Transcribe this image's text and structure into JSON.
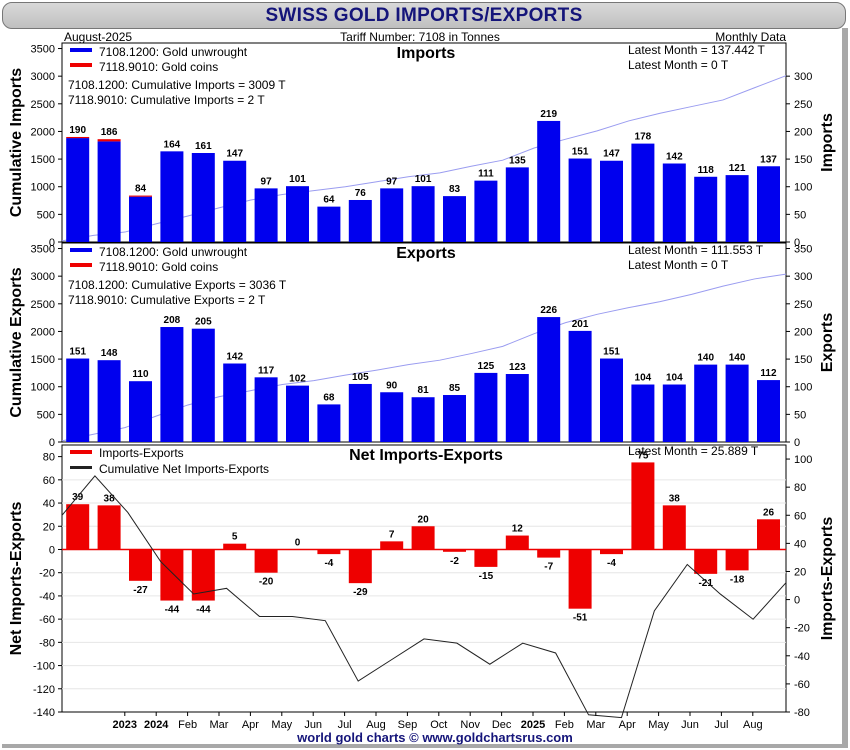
{
  "title": "SWISS GOLD IMPORTS/EXPORTS",
  "header": {
    "left": "August-2025",
    "center": "Tariff Number: 7108 in Tonnes",
    "right": "Monthly Data"
  },
  "footer": "world gold charts © www.goldchartsrus.com",
  "colors": {
    "unwrought": "#0000ee",
    "coins": "#ee0000",
    "net": "#ee0000",
    "cumulative_line": "#9a9cf0",
    "cumulative_net_line": "#222222",
    "title": "#15157a"
  },
  "x_axis": {
    "labels": [
      "",
      "2023",
      "2024",
      "Feb",
      "Mar",
      "Apr",
      "May",
      "Jun",
      "Jul",
      "Aug",
      "Sep",
      "Oct",
      "Nov",
      "Dec",
      "2025",
      "Feb",
      "Mar",
      "Apr",
      "May",
      "Jun",
      "Jul",
      "Aug"
    ],
    "bold": [
      false,
      true,
      true,
      false,
      false,
      false,
      false,
      false,
      false,
      false,
      false,
      false,
      false,
      false,
      true,
      false,
      false,
      false,
      false,
      false,
      false,
      false
    ]
  },
  "chart_data": [
    {
      "id": "imports",
      "type": "bar",
      "title": "Imports",
      "ylabel_left": "Cumulative Imports",
      "ylabel_right": "Imports",
      "left_ylim": [
        0,
        3600
      ],
      "right_ylim": [
        0,
        360
      ],
      "left_ticks": [
        0,
        500,
        1000,
        1500,
        2000,
        2500,
        3000,
        3500
      ],
      "right_ticks": [
        0,
        50,
        100,
        150,
        200,
        250,
        300
      ],
      "legend": [
        "7108.1200: Gold unwrought",
        "7118.9010: Gold coins"
      ],
      "notes": [
        "7108.1200: Cumulative Imports = 3009 T",
        "7118.9010: Cumulative Imports = 2 T"
      ],
      "latest": [
        "Latest Month = 137.442 T",
        "Latest Month = 0 T"
      ],
      "series": [
        {
          "name": "7108.1200: Gold unwrought",
          "values": [
            188,
            182,
            82,
            164,
            161,
            147,
            97,
            101,
            64,
            76,
            97,
            101,
            83,
            111,
            135,
            219,
            151,
            147,
            178,
            142,
            118,
            121,
            137
          ]
        },
        {
          "name": "7118.9010: Gold coins",
          "values": [
            2,
            4,
            2,
            0,
            0,
            0,
            0,
            0,
            0,
            0,
            0,
            0,
            0,
            0,
            0,
            0,
            0,
            0,
            0,
            0,
            0,
            0,
            0
          ]
        }
      ],
      "bar_labels": [
        "190",
        "186",
        "84",
        "164",
        "161",
        "147",
        "97",
        "101",
        "64",
        "76",
        "97",
        "101",
        "83",
        "111",
        "135",
        "219",
        "151",
        "147",
        "178",
        "142",
        "118",
        "121",
        "137"
      ],
      "cumulative": [
        20,
        120,
        180,
        330,
        470,
        620,
        760,
        860,
        930,
        1000,
        1090,
        1180,
        1250,
        1370,
        1480,
        1700,
        1860,
        2010,
        2190,
        2330,
        2450,
        2570,
        2790,
        3009
      ]
    },
    {
      "id": "exports",
      "type": "bar",
      "title": "Exports",
      "ylabel_left": "Cumulative Exports",
      "ylabel_right": "Exports",
      "left_ylim": [
        0,
        3600
      ],
      "right_ylim": [
        0,
        360
      ],
      "left_ticks": [
        0,
        500,
        1000,
        1500,
        2000,
        2500,
        3000,
        3500
      ],
      "right_ticks": [
        0,
        50,
        100,
        150,
        200,
        250,
        300,
        350
      ],
      "legend": [
        "7108.1200: Gold unwrought",
        "7118.9010: Gold coins"
      ],
      "notes": [
        "7108.1200: Cumulative Exports = 3036 T",
        "7118.9010: Cumulative Exports = 2 T"
      ],
      "latest": [
        "Latest Month = 111.553 T",
        "Latest Month = 0 T"
      ],
      "series": [
        {
          "name": "7108.1200: Gold unwrought",
          "values": [
            151,
            148,
            110,
            208,
            205,
            142,
            117,
            102,
            68,
            105,
            90,
            81,
            85,
            125,
            123,
            226,
            201,
            151,
            104,
            104,
            140,
            140,
            112
          ]
        },
        {
          "name": "7118.9010: Gold coins",
          "values": [
            0,
            0,
            0,
            0,
            0,
            0,
            0,
            0,
            0,
            0,
            0,
            0,
            0,
            0,
            0,
            0,
            0,
            0,
            0,
            0,
            0,
            0,
            0
          ]
        }
      ],
      "bar_labels": [
        "151",
        "148",
        "110",
        "208",
        "205",
        "142",
        "117",
        "102",
        "68",
        "105",
        "90",
        "81",
        "85",
        "125",
        "123",
        "226",
        "201",
        "151",
        "104",
        "104",
        "140",
        "140",
        "112"
      ],
      "cumulative": [
        20,
        140,
        260,
        470,
        670,
        820,
        930,
        1040,
        1110,
        1210,
        1300,
        1400,
        1480,
        1600,
        1730,
        1960,
        2160,
        2310,
        2430,
        2540,
        2670,
        2820,
        2950,
        3036
      ]
    },
    {
      "id": "net",
      "type": "bar",
      "title": "Net Imports-Exports",
      "ylabel_left": "Net Imports-Exports",
      "ylabel_right": "Imports-Exports",
      "left_ylim": [
        -140,
        90
      ],
      "right_ylim": [
        -80,
        110
      ],
      "left_ticks": [
        -140,
        -120,
        -100,
        -80,
        -60,
        -40,
        -20,
        0,
        20,
        40,
        60,
        80
      ],
      "right_ticks": [
        -80,
        -60,
        -40,
        -20,
        0,
        20,
        40,
        60,
        80,
        100
      ],
      "legend": [
        "Imports-Exports",
        "Cumulative Net Imports-Exports"
      ],
      "latest": [
        "Latest Month = 25.889 T"
      ],
      "values": [
        39,
        38,
        -27,
        -44,
        -44,
        5,
        -20,
        0,
        -4,
        -29,
        7,
        20,
        -2,
        -15,
        12,
        -7,
        -51,
        -4,
        75,
        38,
        -21,
        -18,
        26
      ],
      "bar_labels": [
        "39",
        "38",
        "-27",
        "-44",
        "-44",
        "5",
        "-20",
        "0",
        "-4",
        "-29",
        "7",
        "20",
        "-2",
        "-15",
        "12",
        "-7",
        "-51",
        "-4",
        "75",
        "38",
        "-21",
        "-18",
        "26"
      ],
      "cumulative": [
        60,
        88,
        62,
        27,
        4,
        8,
        -12,
        -12,
        -15,
        -58,
        -43,
        -28,
        -31,
        -46,
        -31,
        -38,
        -82,
        -84,
        -8,
        25,
        4,
        -14,
        12
      ]
    }
  ]
}
